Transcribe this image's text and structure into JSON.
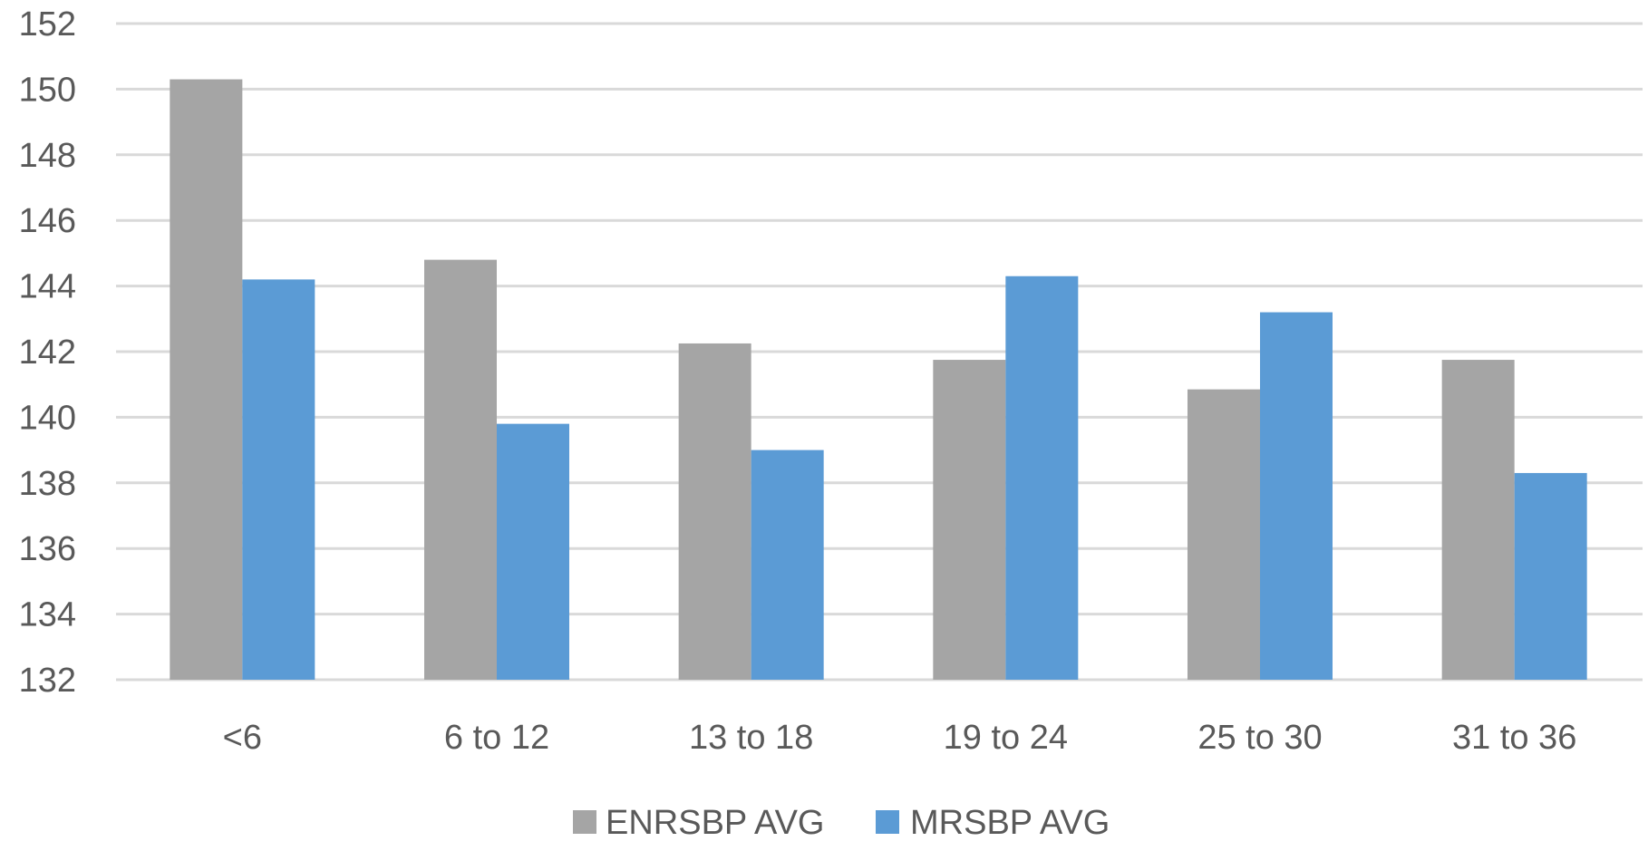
{
  "chart_data": {
    "type": "bar",
    "title": "",
    "xlabel": "",
    "ylabel": "",
    "categories": [
      "<6",
      "6 to 12",
      "13 to 18",
      "19 to 24",
      "25 to 30",
      "31 to 36"
    ],
    "series": [
      {
        "name": "ENRSBP AVG",
        "color": "#a5a5a5",
        "values": [
          150.3,
          144.8,
          142.25,
          141.75,
          140.85,
          141.75
        ]
      },
      {
        "name": "MRSBP AVG",
        "color": "#5b9bd5",
        "values": [
          144.2,
          139.8,
          139.0,
          144.3,
          143.2,
          138.3
        ]
      }
    ],
    "ylim": [
      132,
      152
    ],
    "yticks": [
      132,
      134,
      136,
      138,
      140,
      142,
      144,
      146,
      148,
      150,
      152
    ],
    "grid": true,
    "gridColor": "#d9d9d9",
    "legend_position": "bottom-center"
  }
}
